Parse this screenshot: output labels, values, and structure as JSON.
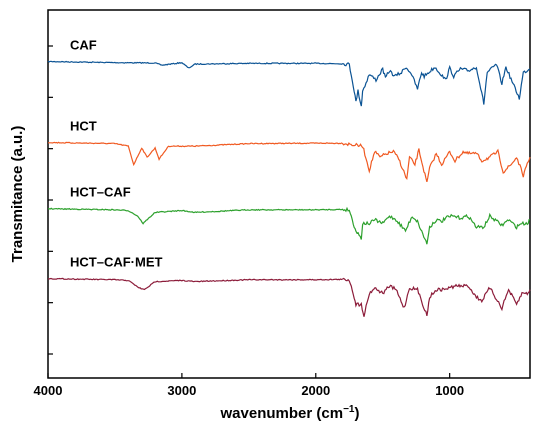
{
  "chart_data": {
    "type": "line",
    "xlabel": "wavenumber (cm",
    "xlabel_sup": "−1",
    "xlabel_end": ")",
    "ylabel": "Transmitance (a.u.)",
    "xlim": [
      4000,
      400
    ],
    "x_reversed": true,
    "x_ticks": [
      4000,
      3000,
      2000,
      1000
    ],
    "y_ticks_unlabeled": 7,
    "grid": false,
    "legend": "inline-labels",
    "series": [
      {
        "name": "CAF",
        "color": "#0b5394",
        "baseline": 0.86,
        "points": [
          [
            4000,
            0.0
          ],
          [
            3500,
            -0.3
          ],
          [
            3200,
            -0.4
          ],
          [
            3150,
            -1.0
          ],
          [
            3000,
            -0.3
          ],
          [
            2950,
            -1.8
          ],
          [
            2900,
            -0.7
          ],
          [
            2500,
            -0.5
          ],
          [
            2000,
            -0.5
          ],
          [
            1800,
            -0.6
          ],
          [
            1750,
            -0.8
          ],
          [
            1720,
            -6.5
          ],
          [
            1700,
            -11.0
          ],
          [
            1685,
            -8.0
          ],
          [
            1660,
            -12.0
          ],
          [
            1650,
            -8.0
          ],
          [
            1600,
            -3.5
          ],
          [
            1550,
            -5.0
          ],
          [
            1500,
            -2.0
          ],
          [
            1480,
            -4.5
          ],
          [
            1450,
            -2.5
          ],
          [
            1410,
            -4.0
          ],
          [
            1360,
            -3.0
          ],
          [
            1330,
            -1.5
          ],
          [
            1290,
            -3.0
          ],
          [
            1240,
            -7.5
          ],
          [
            1210,
            -3.0
          ],
          [
            1190,
            -4.0
          ],
          [
            1110,
            -1.5
          ],
          [
            1030,
            -5.0
          ],
          [
            1000,
            -1.8
          ],
          [
            970,
            -4.0
          ],
          [
            920,
            -2.0
          ],
          [
            860,
            -2.5
          ],
          [
            800,
            -1.5
          ],
          [
            745,
            -11.5
          ],
          [
            720,
            -3.0
          ],
          [
            650,
            -0.8
          ],
          [
            610,
            -6.0
          ],
          [
            580,
            -1.5
          ],
          [
            480,
            -10.0
          ],
          [
            450,
            -3.0
          ],
          [
            400,
            -2.0
          ]
        ]
      },
      {
        "name": "HCT",
        "color": "#f05a22",
        "baseline": 0.64,
        "points": [
          [
            4000,
            0.0
          ],
          [
            3500,
            -0.3
          ],
          [
            3400,
            -1.0
          ],
          [
            3360,
            -6.0
          ],
          [
            3300,
            -1.5
          ],
          [
            3260,
            -4.0
          ],
          [
            3200,
            -1.5
          ],
          [
            3170,
            -4.5
          ],
          [
            3100,
            -1.0
          ],
          [
            2900,
            -1.0
          ],
          [
            2500,
            -0.3
          ],
          [
            2000,
            -0.2
          ],
          [
            1800,
            -0.2
          ],
          [
            1650,
            -1.0
          ],
          [
            1600,
            -7.5
          ],
          [
            1560,
            -2.5
          ],
          [
            1520,
            -4.0
          ],
          [
            1470,
            -3.0
          ],
          [
            1420,
            -2.5
          ],
          [
            1380,
            -4.5
          ],
          [
            1320,
            -10.0
          ],
          [
            1300,
            -4.0
          ],
          [
            1260,
            -6.0
          ],
          [
            1230,
            -2.0
          ],
          [
            1170,
            -11.0
          ],
          [
            1150,
            -7.0
          ],
          [
            1100,
            -3.0
          ],
          [
            1060,
            -6.0
          ],
          [
            1000,
            -2.5
          ],
          [
            960,
            -5.0
          ],
          [
            900,
            -2.5
          ],
          [
            870,
            -3.0
          ],
          [
            800,
            -3.0
          ],
          [
            760,
            -5.0
          ],
          [
            700,
            -4.0
          ],
          [
            640,
            -2.5
          ],
          [
            600,
            -8.0
          ],
          [
            540,
            -6.0
          ],
          [
            500,
            -4.0
          ],
          [
            450,
            -9.0
          ],
          [
            420,
            -6.0
          ],
          [
            400,
            -4.0
          ]
        ]
      },
      {
        "name": "HCT–CAF",
        "color": "#2ca02c",
        "baseline": 0.46,
        "points": [
          [
            4000,
            0.0
          ],
          [
            3500,
            -0.3
          ],
          [
            3400,
            -0.5
          ],
          [
            3330,
            -2.0
          ],
          [
            3290,
            -4.0
          ],
          [
            3200,
            -1.0
          ],
          [
            3000,
            -0.5
          ],
          [
            2900,
            -1.0
          ],
          [
            2500,
            -0.3
          ],
          [
            2000,
            -0.3
          ],
          [
            1800,
            -0.2
          ],
          [
            1750,
            -0.3
          ],
          [
            1720,
            -4.0
          ],
          [
            1700,
            -6.0
          ],
          [
            1660,
            -8.0
          ],
          [
            1650,
            -4.0
          ],
          [
            1600,
            -4.0
          ],
          [
            1560,
            -3.0
          ],
          [
            1500,
            -4.0
          ],
          [
            1450,
            -2.0
          ],
          [
            1400,
            -3.0
          ],
          [
            1330,
            -6.0
          ],
          [
            1280,
            -2.0
          ],
          [
            1240,
            -3.5
          ],
          [
            1170,
            -9.5
          ],
          [
            1150,
            -5.0
          ],
          [
            1100,
            -3.0
          ],
          [
            1060,
            -3.5
          ],
          [
            1030,
            -2.5
          ],
          [
            980,
            -2.0
          ],
          [
            920,
            -2.5
          ],
          [
            860,
            -2.0
          ],
          [
            800,
            -5.0
          ],
          [
            745,
            -5.0
          ],
          [
            700,
            -2.0
          ],
          [
            610,
            -4.5
          ],
          [
            560,
            -3.0
          ],
          [
            500,
            -5.0
          ],
          [
            470,
            -4.0
          ],
          [
            420,
            -4.0
          ],
          [
            400,
            -3.0
          ]
        ]
      },
      {
        "name": "HCT–CAF·MET",
        "color": "#8c1c3a",
        "baseline": 0.27,
        "points": [
          [
            4000,
            0.0
          ],
          [
            3500,
            -0.3
          ],
          [
            3400,
            -0.5
          ],
          [
            3320,
            -2.5
          ],
          [
            3280,
            -3.0
          ],
          [
            3200,
            -0.8
          ],
          [
            3000,
            -0.5
          ],
          [
            2900,
            -0.8
          ],
          [
            2500,
            -0.3
          ],
          [
            2000,
            -0.3
          ],
          [
            1800,
            -0.2
          ],
          [
            1750,
            -0.3
          ],
          [
            1720,
            -4.0
          ],
          [
            1700,
            -7.0
          ],
          [
            1660,
            -7.0
          ],
          [
            1640,
            -10.0
          ],
          [
            1600,
            -4.0
          ],
          [
            1560,
            -2.5
          ],
          [
            1500,
            -4.0
          ],
          [
            1450,
            -2.0
          ],
          [
            1400,
            -3.0
          ],
          [
            1340,
            -8.0
          ],
          [
            1300,
            -2.5
          ],
          [
            1240,
            -3.0
          ],
          [
            1170,
            -10.0
          ],
          [
            1150,
            -5.0
          ],
          [
            1100,
            -3.0
          ],
          [
            1060,
            -3.0
          ],
          [
            1000,
            -2.5
          ],
          [
            960,
            -2.0
          ],
          [
            900,
            -2.0
          ],
          [
            860,
            -2.0
          ],
          [
            800,
            -5.0
          ],
          [
            760,
            -6.0
          ],
          [
            700,
            -2.5
          ],
          [
            610,
            -8.0
          ],
          [
            560,
            -3.0
          ],
          [
            500,
            -7.0
          ],
          [
            460,
            -4.0
          ],
          [
            420,
            -4.0
          ],
          [
            400,
            -3.0
          ]
        ]
      }
    ]
  }
}
